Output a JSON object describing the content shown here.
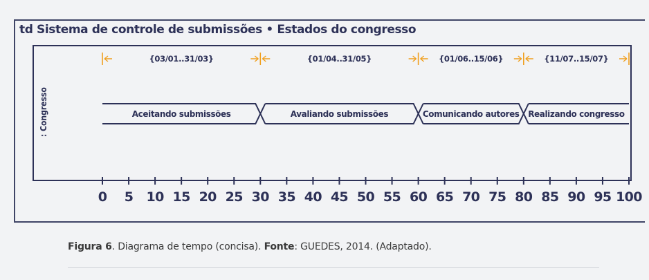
{
  "diagram": {
    "title": "td Sistema de controle de submissões • Estados do congresso",
    "lifeline": ": Congresso",
    "states": [
      {
        "label": "Aceitando submissões",
        "start": 0,
        "end": 30
      },
      {
        "label": "Avaliando submissões",
        "start": 30,
        "end": 60
      },
      {
        "label": "Comunicando autores",
        "start": 60,
        "end": 80
      },
      {
        "label": "Realizando congresso",
        "start": 80,
        "end": 100
      }
    ],
    "intervals": [
      {
        "label": "{03/01..31/03}",
        "start": 0,
        "end": 30
      },
      {
        "label": "{01/04..31/05}",
        "start": 30,
        "end": 60
      },
      {
        "label": "{01/06..15/06}",
        "start": 60,
        "end": 80
      },
      {
        "label": "{11/07..15/07}",
        "start": 80,
        "end": 100
      }
    ],
    "axis": {
      "ticks": [
        "0",
        "5",
        "10",
        "15",
        "20",
        "25",
        "30",
        "35",
        "40",
        "45",
        "50",
        "55",
        "60",
        "65",
        "70",
        "75",
        "80",
        "85",
        "90",
        "95",
        "100"
      ],
      "min": 0,
      "max": 100
    },
    "colors": {
      "line": "#2d3157",
      "constraint": "#f0a020",
      "background": "#f2f3f5"
    }
  },
  "caption": {
    "figure": "Figura 6",
    "text1": ". Diagrama de tempo (concisa). ",
    "source_label": "Fonte",
    "text2": ": GUEDES, 2014. (Adaptado)."
  }
}
